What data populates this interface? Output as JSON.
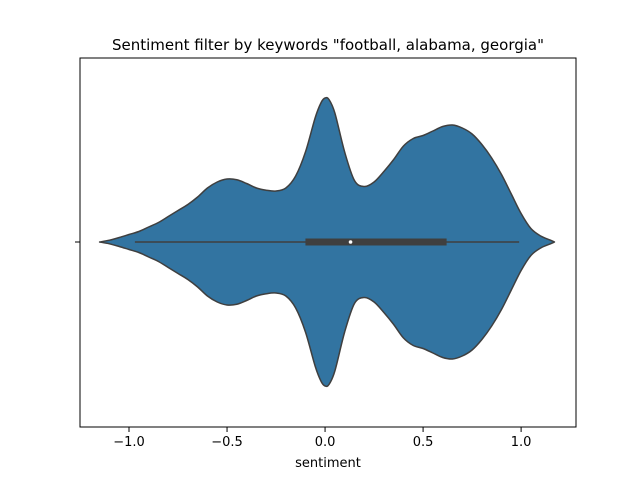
{
  "chart_data": {
    "type": "violin",
    "title": "Sentiment filter by keywords \"football, alabama, georgia\"",
    "xlabel": "sentiment",
    "ylabel": "",
    "xlim": [
      -1.25,
      1.28
    ],
    "xticks": [
      -1.0,
      -0.5,
      0.0,
      0.5,
      1.0
    ],
    "xtick_labels": [
      "−1.0",
      "−0.5",
      "0.0",
      "0.5",
      "1.0"
    ],
    "grid": false,
    "legend": "none",
    "colors": {
      "body": "#3274A1",
      "edge": "#3f3f3f",
      "box": "#3f3f3f",
      "median": "#ffffff"
    },
    "density_profile": [
      [
        -1.15,
        0.0
      ],
      [
        -1.1,
        0.012
      ],
      [
        -1.05,
        0.03
      ],
      [
        -1.0,
        0.05
      ],
      [
        -0.95,
        0.07
      ],
      [
        -0.9,
        0.1
      ],
      [
        -0.85,
        0.13
      ],
      [
        -0.8,
        0.17
      ],
      [
        -0.75,
        0.21
      ],
      [
        -0.7,
        0.25
      ],
      [
        -0.65,
        0.3
      ],
      [
        -0.6,
        0.36
      ],
      [
        -0.55,
        0.4
      ],
      [
        -0.5,
        0.42
      ],
      [
        -0.45,
        0.415
      ],
      [
        -0.4,
        0.39
      ],
      [
        -0.35,
        0.36
      ],
      [
        -0.3,
        0.345
      ],
      [
        -0.25,
        0.34
      ],
      [
        -0.2,
        0.36
      ],
      [
        -0.15,
        0.44
      ],
      [
        -0.1,
        0.6
      ],
      [
        -0.05,
        0.83
      ],
      [
        -0.02,
        0.93
      ],
      [
        0.0,
        0.96
      ],
      [
        0.02,
        0.95
      ],
      [
        0.05,
        0.86
      ],
      [
        0.1,
        0.6
      ],
      [
        0.15,
        0.41
      ],
      [
        0.2,
        0.37
      ],
      [
        0.25,
        0.4
      ],
      [
        0.3,
        0.47
      ],
      [
        0.35,
        0.55
      ],
      [
        0.4,
        0.64
      ],
      [
        0.45,
        0.69
      ],
      [
        0.5,
        0.71
      ],
      [
        0.55,
        0.74
      ],
      [
        0.6,
        0.77
      ],
      [
        0.65,
        0.78
      ],
      [
        0.7,
        0.76
      ],
      [
        0.75,
        0.72
      ],
      [
        0.8,
        0.65
      ],
      [
        0.85,
        0.56
      ],
      [
        0.9,
        0.45
      ],
      [
        0.95,
        0.32
      ],
      [
        1.0,
        0.19
      ],
      [
        1.05,
        0.09
      ],
      [
        1.1,
        0.04
      ],
      [
        1.15,
        0.012
      ],
      [
        1.17,
        0.0
      ]
    ],
    "box": {
      "whisker_low": -0.97,
      "q1": -0.1,
      "median": 0.13,
      "q3": 0.62,
      "whisker_high": 0.99
    }
  }
}
